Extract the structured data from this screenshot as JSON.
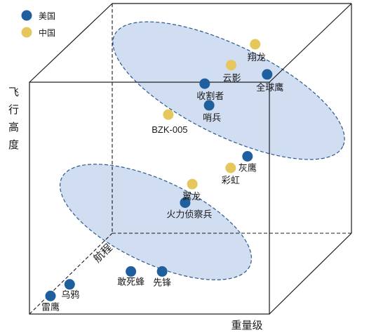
{
  "legend": {
    "items": [
      {
        "label": "美国",
        "color": "#1f5f9e"
      },
      {
        "label": "中国",
        "color": "#e6c75c"
      }
    ]
  },
  "axes": {
    "range_label": "航程",
    "weight_label": "重量级",
    "altitude_label": "飞行高度"
  },
  "groups": {
    "fill": "#c9d7ee",
    "stroke": "#2a5a8c"
  },
  "drones": [
    {
      "name": "雷鹰",
      "country": "美国",
      "range": 0.8,
      "weight": 0.6,
      "altitude": 0.5
    },
    {
      "name": "乌鸦",
      "country": "美国",
      "range": 0.8,
      "weight": 1.4,
      "altitude": 1.0
    },
    {
      "name": "敢死蜂",
      "country": "美国",
      "range": 2.4,
      "weight": 3.4,
      "altitude": 1.0
    },
    {
      "name": "先锋",
      "country": "美国",
      "range": 2.4,
      "weight": 4.7,
      "altitude": 1.0
    },
    {
      "name": "火力侦察兵",
      "country": "美国",
      "range": 4.6,
      "weight": 4.9,
      "altitude": 3.2
    },
    {
      "name": "翼龙",
      "country": "中国",
      "range": 4.6,
      "weight": 5.2,
      "altitude": 4.0
    },
    {
      "name": "彩虹",
      "country": "中国",
      "range": 4.6,
      "weight": 6.8,
      "altitude": 4.7
    },
    {
      "name": "灰鹰",
      "country": "美国",
      "range": 4.6,
      "weight": 7.5,
      "altitude": 5.2
    },
    {
      "name": "BZK-005",
      "country": "中国",
      "range": 4.6,
      "weight": 4.2,
      "altitude": 7.0
    },
    {
      "name": "哨兵",
      "country": "美国",
      "range": 4.6,
      "weight": 5.9,
      "altitude": 7.4
    },
    {
      "name": "收割者",
      "country": "美国",
      "range": 9.0,
      "weight": 4.2,
      "altitude": 6.8
    },
    {
      "name": "云影",
      "country": "中国",
      "range": 9.0,
      "weight": 5.3,
      "altitude": 7.6
    },
    {
      "name": "翔龙",
      "country": "中国",
      "range": 9.0,
      "weight": 6.3,
      "altitude": 8.5
    },
    {
      "name": "全球鹰",
      "country": "美国",
      "range": 9.0,
      "weight": 6.8,
      "altitude": 7.2
    }
  ]
}
